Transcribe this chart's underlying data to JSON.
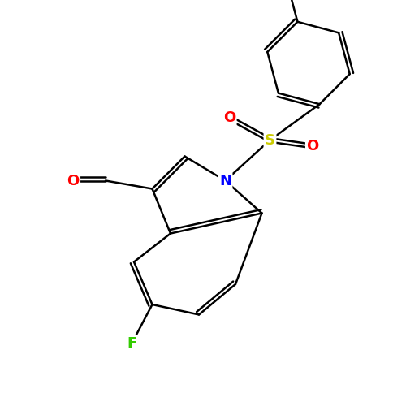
{
  "background_color": "#ffffff",
  "bond_color": "#000000",
  "bond_width": 1.8,
  "atoms": {
    "N": {
      "color": "#0000ff",
      "fontsize": 13,
      "fontweight": "bold"
    },
    "O": {
      "color": "#ff0000",
      "fontsize": 13,
      "fontweight": "bold"
    },
    "S": {
      "color": "#cccc00",
      "fontsize": 13,
      "fontweight": "bold"
    },
    "F": {
      "color": "#33cc00",
      "fontsize": 13,
      "fontweight": "bold"
    }
  }
}
